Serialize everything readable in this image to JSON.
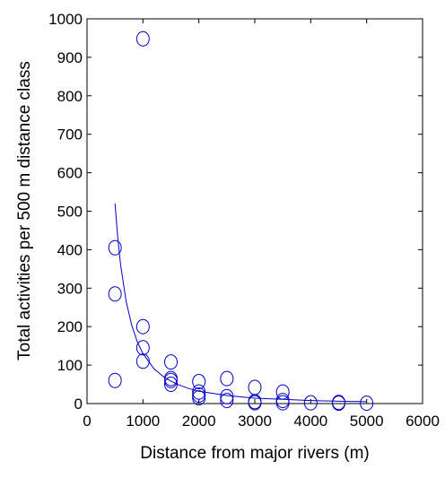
{
  "chart_data": {
    "type": "scatter",
    "xlabel": "Distance from major rivers (m)",
    "ylabel": "Total activities per 500 m distance class",
    "xlim": [
      0,
      6000
    ],
    "ylim": [
      0,
      1000
    ],
    "x_ticks": [
      "0",
      "1000",
      "2000",
      "3000",
      "4000",
      "5000",
      "6000"
    ],
    "y_ticks": [
      "0",
      "100",
      "200",
      "300",
      "400",
      "500",
      "600",
      "700",
      "800",
      "900",
      "1000"
    ],
    "grid": false,
    "marker": "open circle",
    "color": "#0000cc",
    "points": [
      {
        "x": 500,
        "y": 405
      },
      {
        "x": 500,
        "y": 285
      },
      {
        "x": 500,
        "y": 60
      },
      {
        "x": 1000,
        "y": 948
      },
      {
        "x": 1000,
        "y": 200
      },
      {
        "x": 1000,
        "y": 145
      },
      {
        "x": 1000,
        "y": 110
      },
      {
        "x": 1500,
        "y": 108
      },
      {
        "x": 1500,
        "y": 65
      },
      {
        "x": 1500,
        "y": 60
      },
      {
        "x": 1500,
        "y": 50
      },
      {
        "x": 2000,
        "y": 57
      },
      {
        "x": 2000,
        "y": 30
      },
      {
        "x": 2000,
        "y": 22
      },
      {
        "x": 2000,
        "y": 15
      },
      {
        "x": 2500,
        "y": 65
      },
      {
        "x": 2500,
        "y": 18
      },
      {
        "x": 2500,
        "y": 8
      },
      {
        "x": 3000,
        "y": 42
      },
      {
        "x": 3000,
        "y": 5
      },
      {
        "x": 3000,
        "y": 2
      },
      {
        "x": 3500,
        "y": 30
      },
      {
        "x": 3500,
        "y": 8
      },
      {
        "x": 3500,
        "y": 2
      },
      {
        "x": 4000,
        "y": 2
      },
      {
        "x": 4500,
        "y": 3
      },
      {
        "x": 4500,
        "y": 1
      },
      {
        "x": 5000,
        "y": 1
      }
    ],
    "fit_curve": [
      {
        "x": 500,
        "y": 520
      },
      {
        "x": 550,
        "y": 430
      },
      {
        "x": 600,
        "y": 361
      },
      {
        "x": 700,
        "y": 265
      },
      {
        "x": 800,
        "y": 203
      },
      {
        "x": 900,
        "y": 160
      },
      {
        "x": 1000,
        "y": 130
      },
      {
        "x": 1200,
        "y": 90
      },
      {
        "x": 1400,
        "y": 66
      },
      {
        "x": 1600,
        "y": 51
      },
      {
        "x": 1800,
        "y": 40
      },
      {
        "x": 2000,
        "y": 32
      },
      {
        "x": 2500,
        "y": 21
      },
      {
        "x": 3000,
        "y": 14
      },
      {
        "x": 3500,
        "y": 11
      },
      {
        "x": 4000,
        "y": 8
      },
      {
        "x": 4500,
        "y": 6
      },
      {
        "x": 5000,
        "y": 5
      }
    ]
  }
}
